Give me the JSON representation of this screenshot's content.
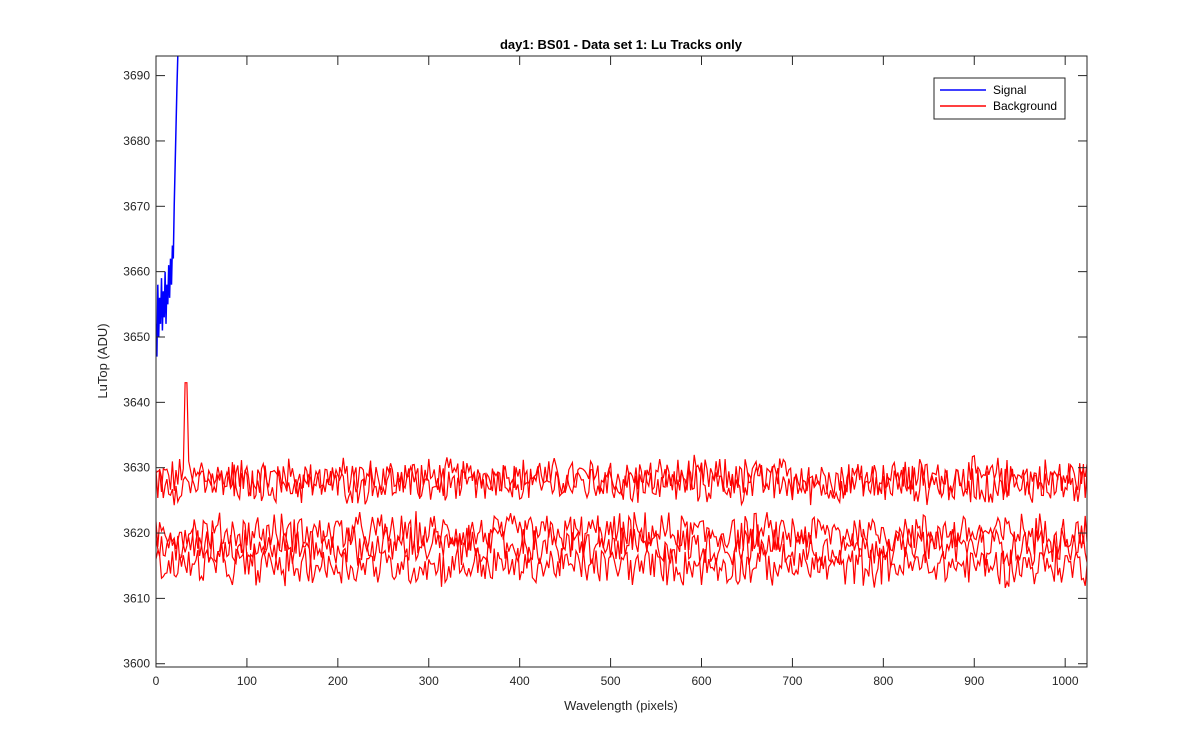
{
  "chart_data": {
    "type": "line",
    "title": "day1: BS01 - Data set 1: Lu Tracks only",
    "xlabel": "Wavelength (pixels)",
    "ylabel": "LuTop (ADU)",
    "xlim": [
      0,
      1024
    ],
    "ylim": [
      3599.5,
      3693
    ],
    "xticks": [
      0,
      100,
      200,
      300,
      400,
      500,
      600,
      700,
      800,
      900,
      1000
    ],
    "yticks": [
      3600,
      3610,
      3620,
      3630,
      3640,
      3650,
      3660,
      3670,
      3680,
      3690
    ],
    "grid": false,
    "legend_position": "top-right",
    "series": [
      {
        "name": "Signal",
        "color": "#0000ff",
        "x": [
          0,
          1,
          2,
          3,
          4,
          5,
          6,
          7,
          8,
          9,
          10,
          11,
          12,
          13,
          14,
          15,
          16,
          17,
          18,
          19,
          20,
          21,
          22,
          23,
          24
        ],
        "y": [
          3652,
          3647,
          3658,
          3650,
          3656,
          3652,
          3659,
          3651,
          3657,
          3653,
          3660,
          3652,
          3658,
          3655,
          3661,
          3656,
          3662,
          3658,
          3664,
          3662,
          3670,
          3676,
          3682,
          3688,
          3693
        ]
      },
      {
        "name": "Background",
        "color": "#ff0000",
        "noise_levels": [
          3628.5,
          3627.5,
          3620,
          3618,
          3615
        ],
        "noise_amplitude": 3,
        "spike": {
          "x": 33,
          "y": 3643
        }
      }
    ]
  }
}
